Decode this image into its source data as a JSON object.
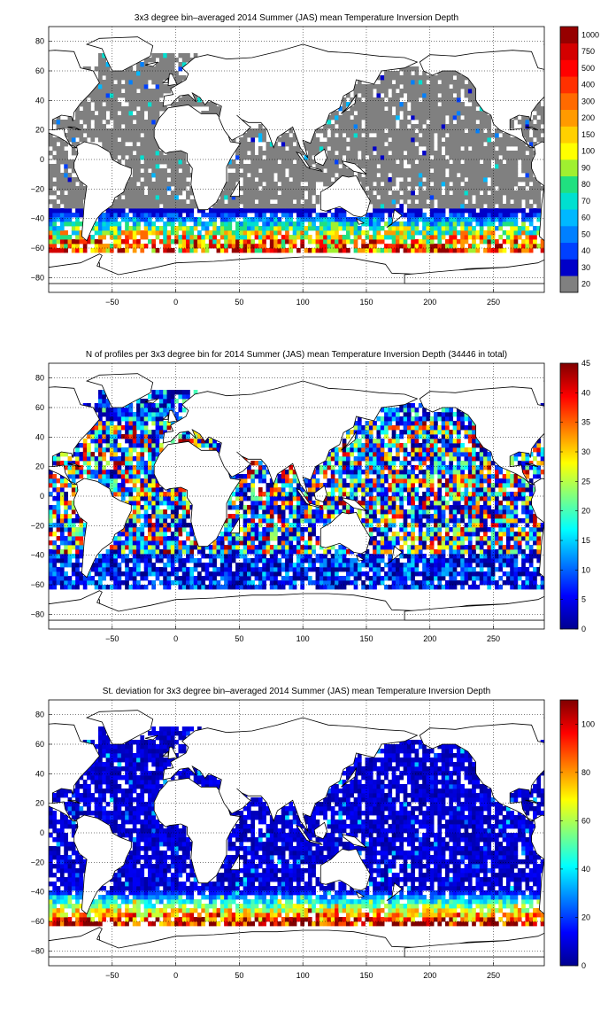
{
  "panels": [
    {
      "title": "3x3 degree bin–averaged 2014 Summer (JAS) mean Temperature Inversion Depth",
      "xticks": [
        "−50",
        "0",
        "50",
        "100",
        "150",
        "200",
        "250"
      ],
      "yticks": [
        "80",
        "60",
        "40",
        "20",
        "0",
        "−20",
        "−40",
        "−60",
        "−80"
      ],
      "colorbar_ticks": [
        "1000",
        "750",
        "500",
        "400",
        "300",
        "200",
        "150",
        "100",
        "90",
        "80",
        "70",
        "60",
        "50",
        "40",
        "30",
        "20"
      ],
      "colorbar_type": "discrete"
    },
    {
      "title": "N of profiles per 3x3 degree bin for 2014 Summer (JAS) mean Temperature Inversion Depth  (34446 in total)",
      "xticks": [
        "−50",
        "0",
        "50",
        "100",
        "150",
        "200",
        "250"
      ],
      "yticks": [
        "80",
        "60",
        "40",
        "20",
        "0",
        "−20",
        "−40",
        "−60",
        "−80"
      ],
      "colorbar_ticks": [
        "45",
        "40",
        "35",
        "30",
        "25",
        "20",
        "15",
        "10",
        "5",
        "0"
      ],
      "colorbar_type": "continuous"
    },
    {
      "title": "St. deviation for 3x3 degree bin–averaged 2014 Summer (JAS) mean Temperature Inversion Depth",
      "xticks": [
        "−50",
        "0",
        "50",
        "100",
        "150",
        "200",
        "250"
      ],
      "yticks": [
        "80",
        "60",
        "40",
        "20",
        "0",
        "−20",
        "−40",
        "−60",
        "−80"
      ],
      "colorbar_ticks": [
        "100",
        "80",
        "60",
        "40",
        "20",
        "0"
      ],
      "colorbar_type": "continuous"
    }
  ],
  "chart_data": [
    {
      "type": "heatmap",
      "title": "3x3 degree bin–averaged 2014 Summer (JAS) mean Temperature Inversion Depth",
      "xlim": [
        -100,
        290
      ],
      "ylim": [
        -90,
        90
      ],
      "xticks": [
        -50,
        0,
        50,
        100,
        150,
        200,
        250
      ],
      "yticks": [
        80,
        60,
        40,
        20,
        0,
        -20,
        -40,
        -60,
        -80
      ],
      "bin_size_deg": 3,
      "grid": true,
      "colorbar": {
        "levels": [
          20,
          30,
          40,
          50,
          60,
          70,
          80,
          90,
          100,
          150,
          200,
          300,
          400,
          500,
          750,
          1000
        ],
        "lowest_class_color": "#808080"
      }
    },
    {
      "type": "heatmap",
      "title": "N of profiles per 3x3 degree bin for 2014 Summer (JAS) mean Temperature Inversion Depth  (34446 in total)",
      "xlim": [
        -100,
        290
      ],
      "ylim": [
        -90,
        90
      ],
      "xticks": [
        -50,
        0,
        50,
        100,
        150,
        200,
        250
      ],
      "yticks": [
        80,
        60,
        40,
        20,
        0,
        -20,
        -40,
        -60,
        -80
      ],
      "bin_size_deg": 3,
      "grid": true,
      "colorbar": {
        "min": 0,
        "max": 45,
        "ticks": [
          0,
          5,
          10,
          15,
          20,
          25,
          30,
          35,
          40,
          45
        ]
      }
    },
    {
      "type": "heatmap",
      "title": "St. deviation for 3x3 degree bin–averaged 2014 Summer (JAS) mean Temperature Inversion Depth",
      "xlim": [
        -100,
        290
      ],
      "ylim": [
        -90,
        90
      ],
      "xticks": [
        -50,
        0,
        50,
        100,
        150,
        200,
        250
      ],
      "yticks": [
        80,
        60,
        40,
        20,
        0,
        -20,
        -40,
        -60,
        -80
      ],
      "bin_size_deg": 3,
      "grid": true,
      "colorbar": {
        "min": 0,
        "max": 110,
        "ticks": [
          0,
          20,
          40,
          60,
          80,
          100
        ]
      }
    }
  ]
}
